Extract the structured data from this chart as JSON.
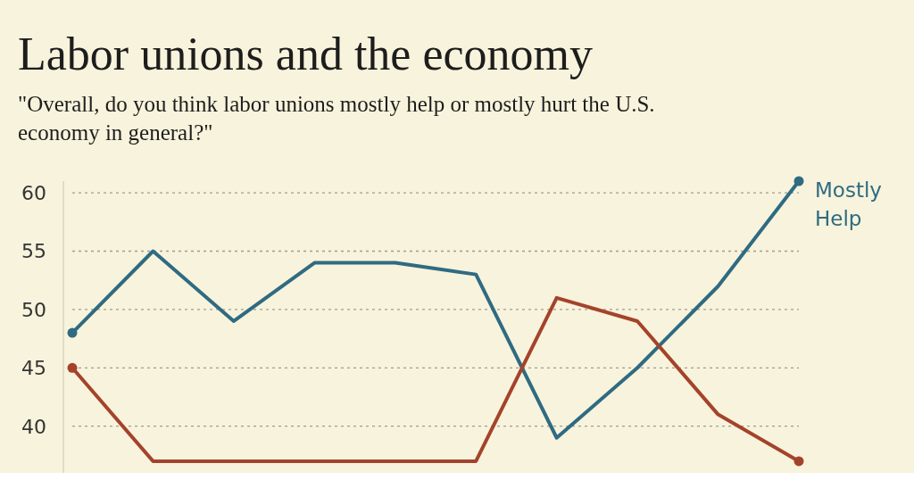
{
  "chart_data": {
    "type": "line",
    "title": "Labor unions and the economy",
    "subtitle": "\"Overall, do you think labor unions mostly help or mostly hurt the U.S. economy in general?\"",
    "categories": [
      null,
      null,
      null,
      null,
      null,
      null,
      null,
      null,
      null,
      null
    ],
    "series": [
      {
        "name": "Mostly Help",
        "color": "#2f6b82",
        "values": [
          48,
          55,
          49,
          54,
          54,
          53,
          39,
          45,
          52,
          61
        ]
      },
      {
        "color": "#a4432b",
        "values": [
          45,
          37,
          37,
          37,
          37,
          37,
          51,
          49,
          41,
          37
        ]
      }
    ],
    "ylim": [
      36,
      61
    ],
    "yticks": [
      40,
      45,
      50,
      55,
      60
    ],
    "grid": "y",
    "line_style": "solid",
    "legend": "top right"
  }
}
